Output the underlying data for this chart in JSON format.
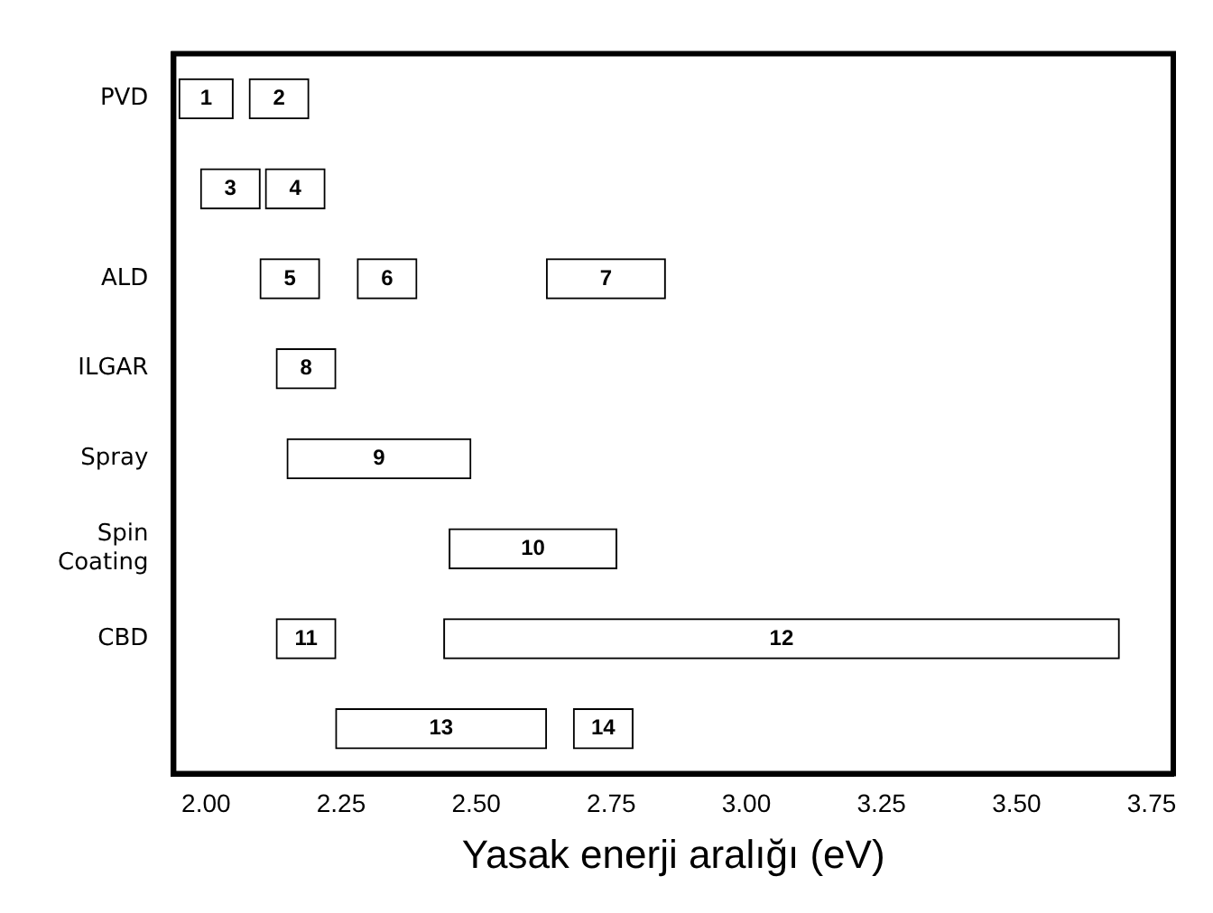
{
  "chart_data": {
    "type": "bar",
    "orientation": "horizontal",
    "xlabel": "Yasak enerji aralığı (eV)",
    "categories": [
      "PVD",
      null,
      "ALD",
      "ILGAR",
      "Spray",
      "Spin Coating",
      "CBD",
      null
    ],
    "series": [
      {
        "name": "1",
        "color": "#ffffff",
        "base": [
          1.95,
          null,
          null,
          null,
          null,
          null,
          null,
          null
        ],
        "values": [
          0.1,
          null,
          null,
          null,
          null,
          null,
          null,
          null
        ]
      },
      {
        "name": "2",
        "color": "#ffffff",
        "base": [
          2.08,
          null,
          null,
          null,
          null,
          null,
          null,
          null
        ],
        "values": [
          0.11,
          null,
          null,
          null,
          null,
          null,
          null,
          null
        ]
      },
      {
        "name": "3",
        "color": "#ffffff",
        "base": [
          null,
          1.99,
          null,
          null,
          null,
          null,
          null,
          null
        ],
        "values": [
          null,
          0.11,
          null,
          null,
          null,
          null,
          null,
          null
        ]
      },
      {
        "name": "4",
        "color": "#ffffff",
        "base": [
          null,
          2.11,
          null,
          null,
          null,
          null,
          null,
          null
        ],
        "values": [
          null,
          0.11,
          null,
          null,
          null,
          null,
          null,
          null
        ]
      },
      {
        "name": "5",
        "color": "#ffffff",
        "base": [
          null,
          null,
          2.1,
          null,
          null,
          null,
          null,
          null
        ],
        "values": [
          null,
          null,
          0.11,
          null,
          null,
          null,
          null,
          null
        ]
      },
      {
        "name": "6",
        "color": "#ffffff",
        "base": [
          null,
          null,
          2.28,
          null,
          null,
          null,
          null,
          null
        ],
        "values": [
          null,
          null,
          0.11,
          null,
          null,
          null,
          null,
          null
        ]
      },
      {
        "name": "7",
        "color": "#ffffff",
        "base": [
          null,
          null,
          2.63,
          null,
          null,
          null,
          null,
          null
        ],
        "values": [
          null,
          null,
          0.22,
          null,
          null,
          null,
          null,
          null
        ]
      },
      {
        "name": "8",
        "color": "#ffffff",
        "base": [
          null,
          null,
          null,
          2.13,
          null,
          null,
          null,
          null
        ],
        "values": [
          null,
          null,
          null,
          0.11,
          null,
          null,
          null,
          null
        ]
      },
      {
        "name": "9",
        "color": "#ffffff",
        "base": [
          null,
          null,
          null,
          null,
          2.15,
          null,
          null,
          null
        ],
        "values": [
          null,
          null,
          null,
          null,
          0.34,
          null,
          null,
          null
        ]
      },
      {
        "name": "10",
        "color": "#ffffff",
        "base": [
          null,
          null,
          null,
          null,
          null,
          2.45,
          null,
          null
        ],
        "values": [
          null,
          null,
          null,
          null,
          null,
          0.31,
          null,
          null
        ]
      },
      {
        "name": "11",
        "color": "#ffffff",
        "base": [
          null,
          null,
          null,
          null,
          null,
          null,
          2.13,
          null
        ],
        "values": [
          null,
          null,
          null,
          null,
          null,
          null,
          0.11,
          null
        ]
      },
      {
        "name": "12",
        "color": "#ffffff",
        "base": [
          null,
          null,
          null,
          null,
          null,
          null,
          2.44,
          null
        ],
        "values": [
          null,
          null,
          null,
          null,
          null,
          null,
          1.25,
          null
        ]
      },
      {
        "name": "13",
        "color": "#ffffff",
        "base": [
          null,
          null,
          null,
          null,
          null,
          null,
          null,
          2.24
        ],
        "values": [
          null,
          null,
          null,
          null,
          null,
          null,
          null,
          0.39
        ]
      },
      {
        "name": "14",
        "color": "#ffffff",
        "base": [
          null,
          null,
          null,
          null,
          null,
          null,
          null,
          2.68
        ],
        "values": [
          null,
          null,
          null,
          null,
          null,
          null,
          null,
          0.11
        ]
      }
    ],
    "xlim": [
      1.94,
      3.79
    ],
    "xticks": [
      {
        "value": 2,
        "label": "2.00"
      },
      {
        "value": 2.25,
        "label": "2.25"
      },
      {
        "value": 2.5,
        "label": "2.50"
      },
      {
        "value": 2.75,
        "label": "2.75"
      },
      {
        "value": 3,
        "label": "3.00"
      },
      {
        "value": 3.25,
        "label": "3.25"
      },
      {
        "value": 3.5,
        "label": "3.50"
      },
      {
        "value": 3.75,
        "label": "3.75"
      }
    ],
    "grid": false,
    "legend": false
  }
}
